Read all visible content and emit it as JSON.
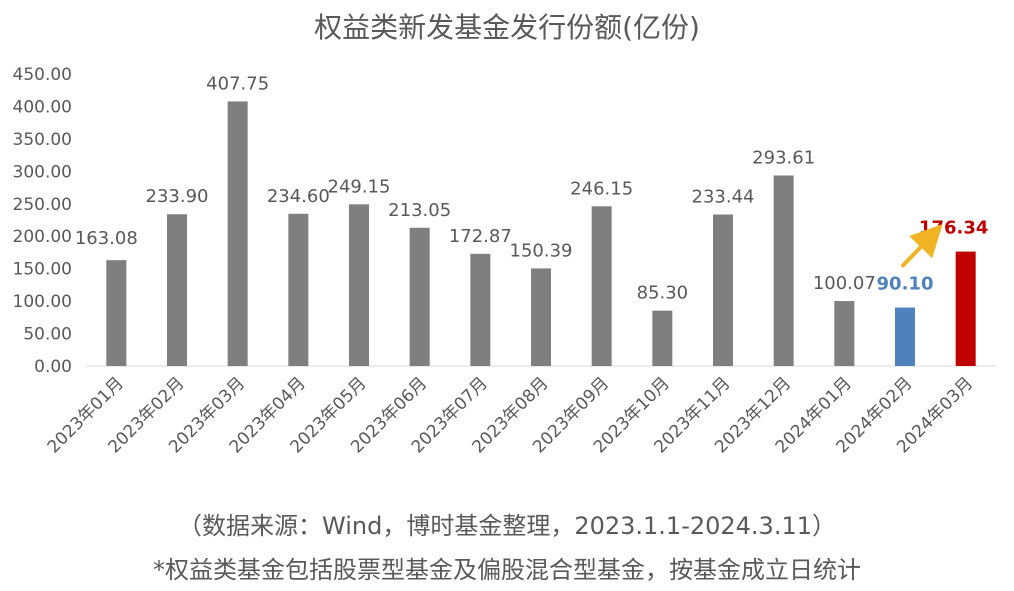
{
  "chart_data": {
    "type": "bar",
    "title": "权益类新发基金发行份额(亿份)",
    "xlabel": "",
    "ylabel": "",
    "ylim": [
      0,
      450
    ],
    "yticks": [
      "0.00",
      "50.00",
      "100.00",
      "150.00",
      "200.00",
      "250.00",
      "300.00",
      "350.00",
      "400.00",
      "450.00"
    ],
    "categories": [
      "2023年01月",
      "2023年02月",
      "2023年03月",
      "2023年04月",
      "2023年05月",
      "2023年06月",
      "2023年07月",
      "2023年08月",
      "2023年09月",
      "2023年10月",
      "2023年11月",
      "2023年12月",
      "2024年01月",
      "2024年02月",
      "2024年03月"
    ],
    "values": [
      163.08,
      233.9,
      407.75,
      234.6,
      249.15,
      213.05,
      172.87,
      150.39,
      246.15,
      85.3,
      233.44,
      293.61,
      100.07,
      90.1,
      176.34
    ],
    "value_labels": [
      "163.08",
      "233.90",
      "407.75",
      "234.60",
      "249.15",
      "213.05",
      "172.87",
      "150.39",
      "246.15",
      "85.30",
      "233.44",
      "293.61",
      "100.07",
      "90.10",
      "176.34"
    ],
    "colors": {
      "default": "#7f7f7f",
      "highlight_2024_02": "#4f81bd",
      "highlight_2024_03": "#c00000",
      "arrow": "#f0b323",
      "axis_text": "#595959"
    },
    "bar_colors": [
      "default",
      "default",
      "default",
      "default",
      "default",
      "default",
      "default",
      "default",
      "default",
      "default",
      "default",
      "default",
      "default",
      "highlight_2024_02",
      "highlight_2024_03"
    ],
    "grid": false,
    "legend": "none",
    "annotation": "arrow pointing from 2024年02月 toward 2024年03月"
  },
  "notes": {
    "source": "（数据来源：Wind，博时基金整理，2023.1.1-2024.3.11）",
    "definition": "*权益类基金包括股票型基金及偏股混合型基金，按基金成立日统计"
  }
}
